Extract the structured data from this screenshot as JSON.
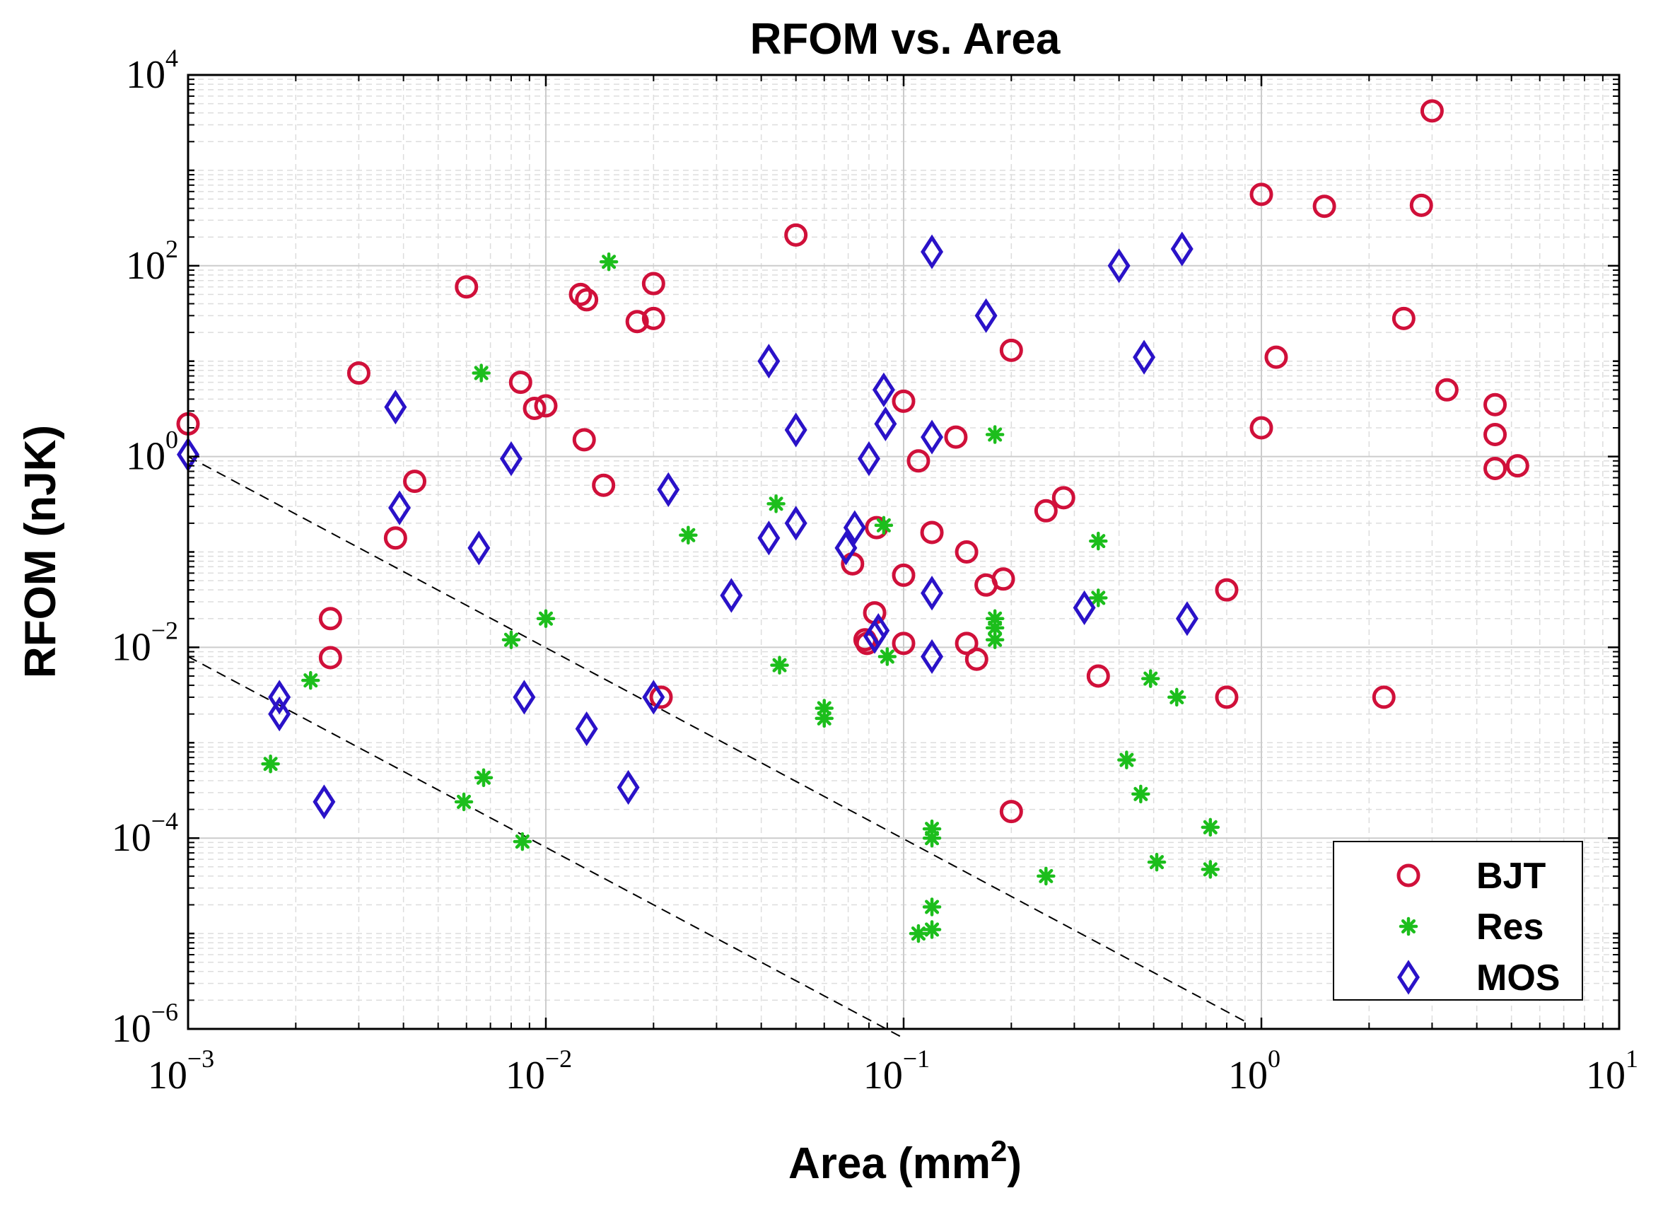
{
  "chart_data": {
    "type": "scatter",
    "title": "RFOM vs. Area",
    "xlabel": {
      "text": "Area (mm",
      "sup": "2",
      "close": ")"
    },
    "ylabel": "RFOM (nJK)",
    "xscale": "log",
    "yscale": "log",
    "xlim": [
      0.001,
      10
    ],
    "ylim": [
      1e-06,
      10000
    ],
    "grid": true,
    "legend_position": "bottom-right",
    "x_ticks": [
      {
        "base": "10",
        "exp": "−3",
        "value": 0.001
      },
      {
        "base": "10",
        "exp": "−2",
        "value": 0.01
      },
      {
        "base": "10",
        "exp": "−1",
        "value": 0.1
      },
      {
        "base": "10",
        "exp": "0",
        "value": 1
      },
      {
        "base": "10",
        "exp": "1",
        "value": 10
      }
    ],
    "y_ticks": [
      {
        "base": "10",
        "exp": "−6",
        "value": 1e-06
      },
      {
        "base": "10",
        "exp": "−4",
        "value": 0.0001
      },
      {
        "base": "10",
        "exp": "−2",
        "value": 0.01
      },
      {
        "base": "10",
        "exp": "0",
        "value": 1
      },
      {
        "base": "10",
        "exp": "2",
        "value": 100
      },
      {
        "base": "10",
        "exp": "4",
        "value": 10000
      }
    ],
    "reference_lines": [
      {
        "x": [
          0.001,
          0.9
        ],
        "y": [
          1,
          1.2e-06
        ],
        "style": "dashed"
      },
      {
        "x": [
          0.001,
          0.1
        ],
        "y": [
          0.008,
          8e-07
        ],
        "style": "dashed"
      }
    ],
    "series": [
      {
        "name": "BJT",
        "marker": "circle",
        "color": "#d0103a",
        "points": [
          [
            0.001,
            2.2
          ],
          [
            0.003,
            7.5
          ],
          [
            0.0038,
            0.14
          ],
          [
            0.0043,
            0.55
          ],
          [
            0.0025,
            0.02
          ],
          [
            0.0025,
            0.0078
          ],
          [
            0.006,
            60
          ],
          [
            0.0085,
            6
          ],
          [
            0.0093,
            3.2
          ],
          [
            0.01,
            3.4
          ],
          [
            0.0125,
            50
          ],
          [
            0.013,
            44
          ],
          [
            0.0128,
            1.5
          ],
          [
            0.0145,
            0.5
          ],
          [
            0.018,
            26
          ],
          [
            0.02,
            28
          ],
          [
            0.02,
            65
          ],
          [
            0.021,
            0.003
          ],
          [
            0.05,
            210
          ],
          [
            0.072,
            0.075
          ],
          [
            0.078,
            0.012
          ],
          [
            0.079,
            0.011
          ],
          [
            0.083,
            0.023
          ],
          [
            0.084,
            0.18
          ],
          [
            0.1,
            3.8
          ],
          [
            0.1,
            0.057
          ],
          [
            0.1,
            0.011
          ],
          [
            0.11,
            0.9
          ],
          [
            0.12,
            0.16
          ],
          [
            0.14,
            1.6
          ],
          [
            0.15,
            0.1
          ],
          [
            0.15,
            0.011
          ],
          [
            0.16,
            0.0075
          ],
          [
            0.17,
            0.045
          ],
          [
            0.19,
            0.052
          ],
          [
            0.2,
            13
          ],
          [
            0.2,
            0.00019
          ],
          [
            0.25,
            0.27
          ],
          [
            0.28,
            0.37
          ],
          [
            0.35,
            0.005
          ],
          [
            0.8,
            0.04
          ],
          [
            0.8,
            0.003
          ],
          [
            1,
            560
          ],
          [
            1,
            2
          ],
          [
            1.1,
            11
          ],
          [
            1.5,
            420
          ],
          [
            2.2,
            0.003
          ],
          [
            2.5,
            28
          ],
          [
            2.8,
            430
          ],
          [
            3,
            4200
          ],
          [
            3.3,
            5
          ],
          [
            4.5,
            3.5
          ],
          [
            4.5,
            1.7
          ],
          [
            4.5,
            0.75
          ],
          [
            5.2,
            0.8
          ]
        ]
      },
      {
        "name": "Res",
        "marker": "asterisk",
        "color": "#1cbe1c",
        "points": [
          [
            0.0017,
            0.0006
          ],
          [
            0.0022,
            0.0045
          ],
          [
            0.0059,
            0.00024
          ],
          [
            0.0066,
            7.5
          ],
          [
            0.0067,
            0.00043
          ],
          [
            0.008,
            0.012
          ],
          [
            0.0086,
            9.2e-05
          ],
          [
            0.01,
            0.02
          ],
          [
            0.015,
            110
          ],
          [
            0.025,
            0.15
          ],
          [
            0.044,
            0.32
          ],
          [
            0.045,
            0.0065
          ],
          [
            0.06,
            0.0023
          ],
          [
            0.06,
            0.0018
          ],
          [
            0.088,
            0.19
          ],
          [
            0.09,
            0.008
          ],
          [
            0.11,
            1e-05
          ],
          [
            0.12,
            1.1e-05
          ],
          [
            0.12,
            1.9e-05
          ],
          [
            0.12,
            0.000125
          ],
          [
            0.12,
            0.0001
          ],
          [
            0.18,
            1.7
          ],
          [
            0.18,
            0.02
          ],
          [
            0.18,
            0.016
          ],
          [
            0.18,
            0.012
          ],
          [
            0.25,
            4e-05
          ],
          [
            0.35,
            0.13
          ],
          [
            0.35,
            0.033
          ],
          [
            0.42,
            0.00066
          ],
          [
            0.46,
            0.00029
          ],
          [
            0.49,
            0.0047
          ],
          [
            0.51,
            5.6e-05
          ],
          [
            0.58,
            0.003
          ],
          [
            0.72,
            0.00013
          ],
          [
            0.72,
            4.7e-05
          ]
        ]
      },
      {
        "name": "MOS",
        "marker": "diamond",
        "color": "#2a12c8",
        "points": [
          [
            0.001,
            1.05
          ],
          [
            0.0018,
            0.003
          ],
          [
            0.0018,
            0.002
          ],
          [
            0.0024,
            0.00024
          ],
          [
            0.0038,
            3.3
          ],
          [
            0.0039,
            0.29
          ],
          [
            0.0065,
            0.11
          ],
          [
            0.008,
            0.95
          ],
          [
            0.0087,
            0.003
          ],
          [
            0.013,
            0.0014
          ],
          [
            0.017,
            0.00034
          ],
          [
            0.02,
            0.003
          ],
          [
            0.022,
            0.45
          ],
          [
            0.033,
            0.035
          ],
          [
            0.042,
            10
          ],
          [
            0.042,
            0.14
          ],
          [
            0.05,
            1.9
          ],
          [
            0.05,
            0.2
          ],
          [
            0.069,
            0.11
          ],
          [
            0.073,
            0.18
          ],
          [
            0.08,
            0.95
          ],
          [
            0.083,
            0.013
          ],
          [
            0.085,
            0.015
          ],
          [
            0.088,
            5
          ],
          [
            0.089,
            2.2
          ],
          [
            0.12,
            140
          ],
          [
            0.12,
            1.6
          ],
          [
            0.12,
            0.037
          ],
          [
            0.12,
            0.008
          ],
          [
            0.17,
            30
          ],
          [
            0.32,
            0.026
          ],
          [
            0.4,
            100
          ],
          [
            0.47,
            11
          ],
          [
            0.6,
            150
          ],
          [
            0.62,
            0.02
          ]
        ]
      }
    ]
  }
}
